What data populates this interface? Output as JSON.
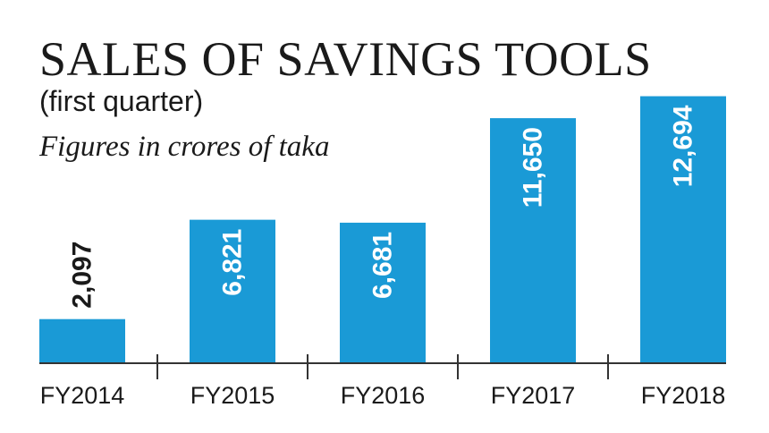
{
  "chart_data": {
    "type": "bar",
    "title": "SALES OF SAVINGS TOOLS",
    "subtitle": "(first quarter)",
    "note": "Figures in crores of taka",
    "categories": [
      "FY2014",
      "FY2015",
      "FY2016",
      "FY2017",
      "FY2018"
    ],
    "values": [
      2097,
      6821,
      6681,
      11650,
      12694
    ],
    "value_labels": [
      "2,097",
      "6,821",
      "6,681",
      "11,650",
      "12,694"
    ],
    "ylim": [
      0,
      13100
    ],
    "grid": false,
    "legend": "none",
    "colors": {
      "bar": "#1a9ad6",
      "label_inside": "#ffffff",
      "label_outside": "#1a1a1a"
    }
  }
}
